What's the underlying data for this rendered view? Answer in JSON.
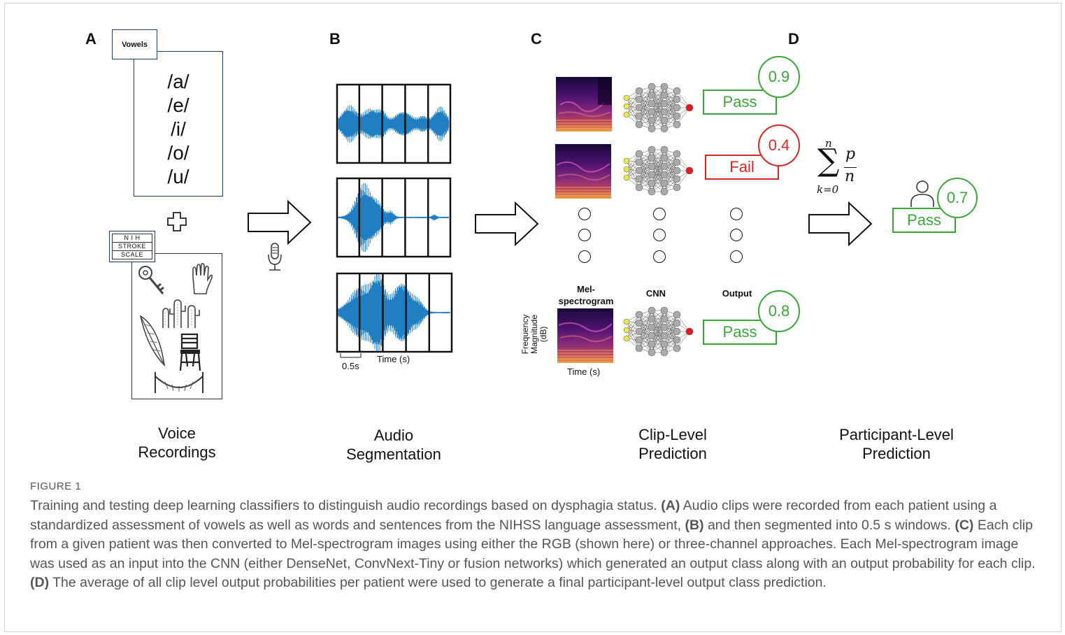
{
  "panels": {
    "a": {
      "letter": "A",
      "vowels_tag": "Vowels",
      "vowels": [
        "/a/",
        "/e/",
        "/i/",
        "/o/",
        "/u/"
      ],
      "nih_badge": [
        "N I H",
        "STROKE",
        "SCALE"
      ],
      "pictures": [
        "key-icon",
        "glove-icon",
        "cactus-icon",
        "feather-icon",
        "chair-icon",
        "hammock-icon"
      ],
      "stage_label": [
        "Voice",
        "Recordings"
      ]
    },
    "b": {
      "letter": "B",
      "window_label": "0.5s",
      "time_label": "Time (s)",
      "stage_label": [
        "Audio",
        "Segmentation"
      ]
    },
    "c": {
      "letter": "C",
      "col_spectrogram": [
        "Mel-",
        "spectrogram"
      ],
      "col_cnn": "CNN",
      "col_output": "Output",
      "y_axis_label": [
        "Frequency",
        "Magnitude",
        "(dB)"
      ],
      "x_axis_label": "Time (s)",
      "clips": [
        {
          "result": "Pass",
          "probability": "0.9",
          "status": "pass"
        },
        {
          "result": "Fail",
          "probability": "0.4",
          "status": "fail"
        },
        {
          "result": "Pass",
          "probability": "0.8",
          "status": "pass"
        }
      ],
      "stage_label": [
        "Clip-Level",
        "Prediction"
      ]
    },
    "d": {
      "letter": "D",
      "formula": {
        "upper": "n",
        "lower": "k=0",
        "numerator": "p",
        "denominator": "n"
      },
      "participant_result": "Pass",
      "participant_probability": "0.7",
      "stage_label": [
        "Participant-Level",
        "Prediction"
      ]
    }
  },
  "colors": {
    "pass": "#3aa63a",
    "fail": "#d62828",
    "waveform": "#1f7fc2",
    "node_input": "#e8e84a",
    "node_output": "#e01c1c"
  },
  "caption": {
    "figure_label": "FIGURE 1",
    "parts": [
      {
        "bold": "",
        "text": "Training and testing deep learning classifiers to distinguish audio recordings based on dysphagia status. "
      },
      {
        "bold": "(A)",
        "text": " Audio clips were recorded from each patient using a standardized assessment of vowels as well as words and sentences from the NIHSS language assessment, "
      },
      {
        "bold": "(B)",
        "text": " and then segmented into 0.5 s windows. "
      },
      {
        "bold": "(C)",
        "text": " Each clip from a given patient was then converted to Mel-spectrogram images using either the RGB (shown here) or three-channel approaches. Each Mel-spectrogram image was used as an input into the CNN (either DenseNet, ConvNext-Tiny or fusion networks) which generated an output class along with an output probability for each clip. "
      },
      {
        "bold": "(D)",
        "text": " The average of all clip level output probabilities per patient were used to generate a final participant-level output class prediction."
      }
    ]
  }
}
